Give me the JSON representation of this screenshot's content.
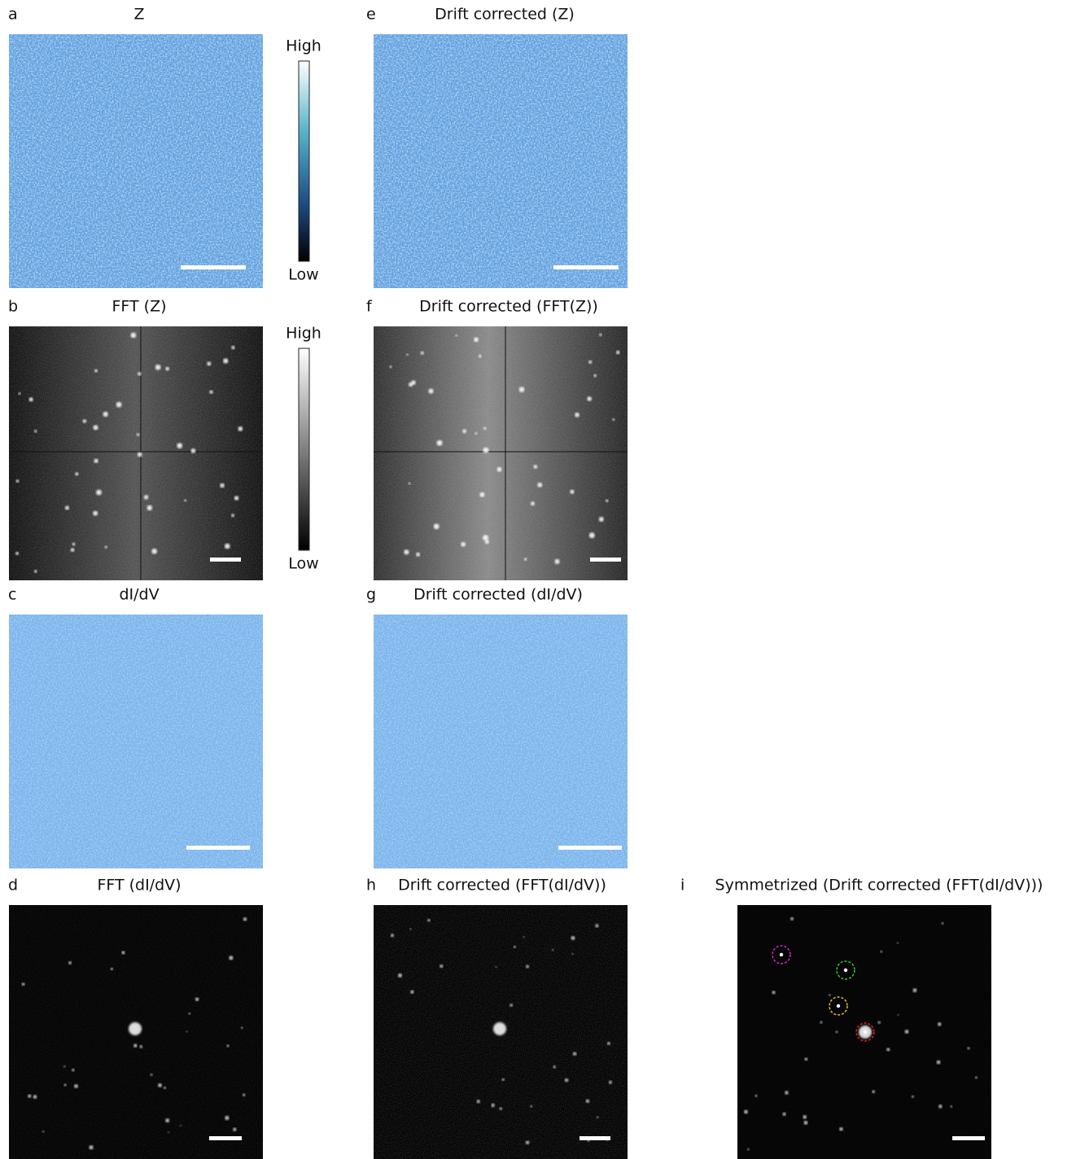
{
  "panels": [
    {
      "letter": "a",
      "title": "Z"
    },
    {
      "letter": "b",
      "title": "FFT (Z)"
    },
    {
      "letter": "c",
      "title": "dI/dV"
    },
    {
      "letter": "d",
      "title": "FFT (dI/dV)"
    },
    {
      "letter": "e",
      "title": "Drift corrected (Z)"
    },
    {
      "letter": "f",
      "title": "Drift corrected (FFT(Z))"
    },
    {
      "letter": "g",
      "title": "Drift corrected (dI/dV)"
    },
    {
      "letter": "h",
      "title": "Drift corrected (FFT(dI/dV))"
    },
    {
      "letter": "i",
      "title": "Symmetrized (Drift corrected (FFT(dI/dV)))"
    }
  ],
  "colorbars": [
    {
      "high": "High",
      "low": "Low"
    },
    {
      "high": "High",
      "low": "Low"
    }
  ]
}
